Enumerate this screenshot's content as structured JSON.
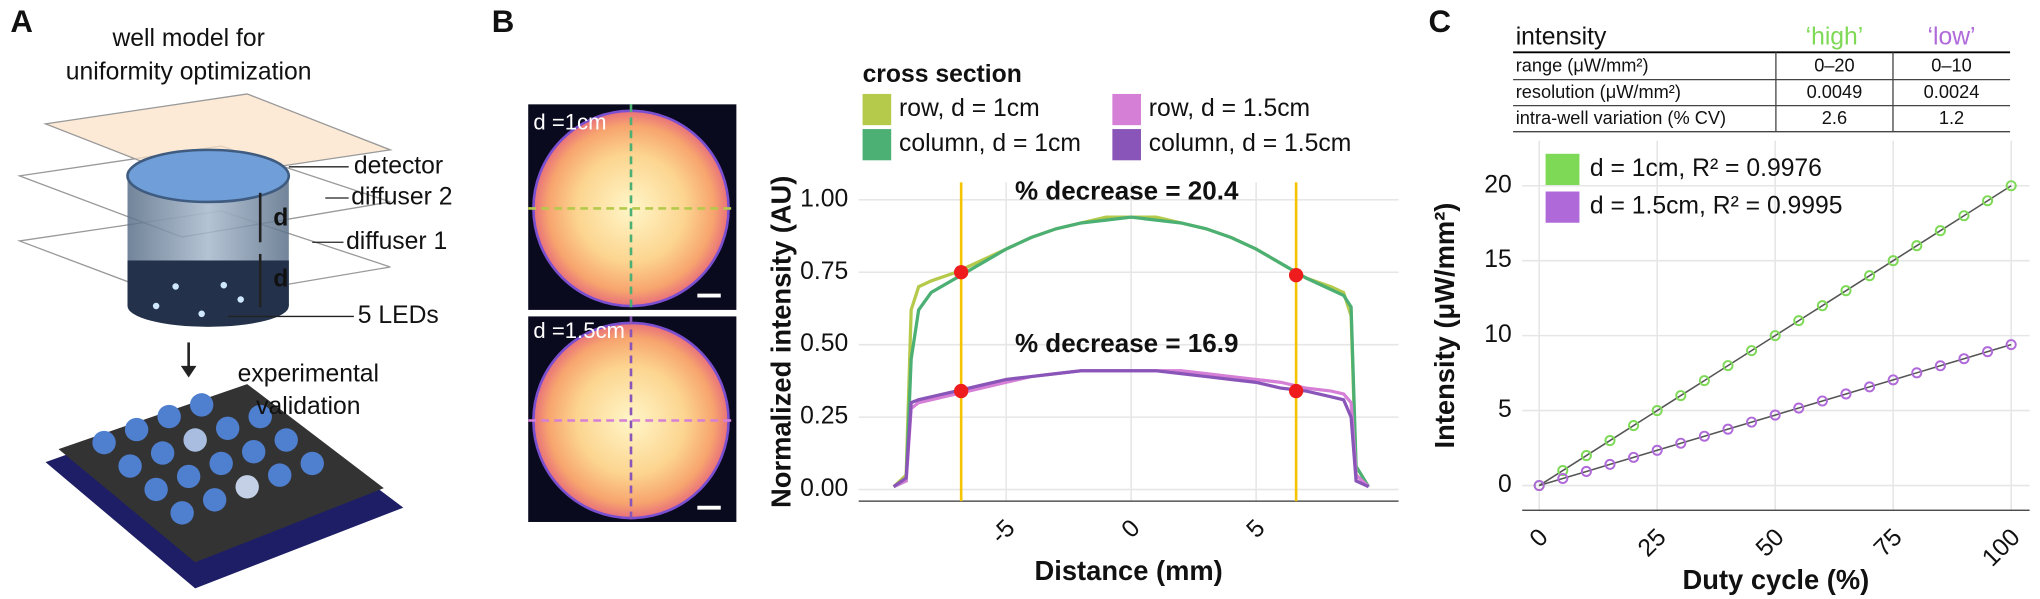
{
  "panels": {
    "a": "A",
    "b": "B",
    "c": "C"
  },
  "diagram": {
    "title": [
      "well model for",
      "uniformity optimization"
    ],
    "labels": {
      "detector": "detector",
      "diffuser2": "diffuser 2",
      "diffuser1": "diffuser 1",
      "d_top": "d",
      "d_bottom": "d",
      "leds": "5 LEDs"
    },
    "validation": [
      "experimental",
      "validation"
    ]
  },
  "images": {
    "top": "d =1cm",
    "bottom": "d =1.5cm"
  },
  "table": {
    "header": [
      "intensity",
      "‘high’",
      "‘low’"
    ],
    "rows": [
      [
        "range (μW/mm²)",
        "0–20",
        "0–10"
      ],
      [
        "resolution (μW/mm²)",
        "0.0049",
        "0.0024"
      ],
      [
        "intra-well variation (% CV)",
        "2.6",
        "1.2"
      ]
    ]
  },
  "chart_data": [
    {
      "type": "line",
      "legend_title": "cross section",
      "x_label": "Distance (mm)",
      "y_label": "Normalized intensity (AU)",
      "annotations": [
        "% decrease = 20.4",
        "% decrease = 16.9"
      ],
      "x": [
        -9.5,
        -9,
        -8.8,
        -8.5,
        -8,
        -7,
        -6,
        -5,
        -4,
        -3,
        -2,
        -1,
        0,
        1,
        2,
        3,
        4,
        5,
        6,
        7,
        8,
        8.5,
        8.8,
        9,
        9.5
      ],
      "series": [
        {
          "name": "row, d = 1cm",
          "color": "#b5c94a",
          "values": [
            0.01,
            0.05,
            0.62,
            0.7,
            0.72,
            0.75,
            0.79,
            0.83,
            0.87,
            0.9,
            0.92,
            0.94,
            0.94,
            0.94,
            0.92,
            0.9,
            0.87,
            0.83,
            0.78,
            0.73,
            0.7,
            0.68,
            0.6,
            0.05,
            0.01
          ]
        },
        {
          "name": "column, d = 1cm",
          "color": "#4caf73",
          "values": [
            0.01,
            0.03,
            0.45,
            0.62,
            0.68,
            0.73,
            0.78,
            0.83,
            0.87,
            0.9,
            0.92,
            0.93,
            0.94,
            0.93,
            0.92,
            0.9,
            0.87,
            0.83,
            0.78,
            0.73,
            0.69,
            0.67,
            0.63,
            0.08,
            0.01
          ]
        },
        {
          "name": "row, d = 1.5cm",
          "color": "#d67fd6",
          "values": [
            0.01,
            0.03,
            0.28,
            0.3,
            0.31,
            0.33,
            0.35,
            0.37,
            0.39,
            0.4,
            0.41,
            0.41,
            0.41,
            0.41,
            0.41,
            0.4,
            0.39,
            0.38,
            0.37,
            0.35,
            0.34,
            0.33,
            0.3,
            0.05,
            0.01
          ]
        },
        {
          "name": "column, d = 1.5cm",
          "color": "#8a55b8",
          "values": [
            0.01,
            0.04,
            0.3,
            0.31,
            0.32,
            0.34,
            0.36,
            0.38,
            0.39,
            0.4,
            0.41,
            0.41,
            0.41,
            0.41,
            0.4,
            0.39,
            0.38,
            0.37,
            0.35,
            0.34,
            0.32,
            0.31,
            0.25,
            0.03,
            0.01
          ]
        }
      ],
      "vlines": [
        -6.8,
        6.6
      ],
      "vline_color": "#f5c400",
      "highlights": {
        "x": [
          -6.8,
          -6.8,
          6.6,
          6.6
        ],
        "values": [
          0.75,
          0.34,
          0.74,
          0.34
        ],
        "color": "#ee1c1c"
      },
      "xlim": [
        -10.9,
        10.7
      ],
      "ylim": [
        -0.04,
        1.06
      ],
      "xticks": [
        -5,
        0,
        5
      ],
      "yticks": [
        {
          "value": 0,
          "label": "0.00"
        },
        {
          "value": 0.25,
          "label": "0.25"
        },
        {
          "value": 0.5,
          "label": "0.50"
        },
        {
          "value": 0.75,
          "label": "0.75"
        },
        {
          "value": 1,
          "label": "1.00"
        }
      ],
      "grid": true
    },
    {
      "type": "scatter",
      "x_label": "Duty cycle (%)",
      "y_label": "Intensity (μW/mm²)",
      "x": [
        0,
        5,
        10,
        15,
        20,
        25,
        30,
        35,
        40,
        45,
        50,
        55,
        60,
        65,
        70,
        75,
        80,
        85,
        90,
        95,
        100
      ],
      "series": [
        {
          "name": "d = 1cm, R² = 0.9976",
          "color": "#7ed957",
          "values": [
            0,
            1,
            2,
            3,
            4,
            5,
            6,
            7,
            8,
            9,
            10,
            11,
            12,
            13,
            14,
            15,
            16,
            17,
            18,
            19,
            20
          ]
        },
        {
          "name": "d = 1.5cm, R² = 0.9995",
          "color": "#b069d9",
          "values": [
            0,
            0.47,
            0.94,
            1.41,
            1.88,
            2.35,
            2.82,
            3.29,
            3.76,
            4.23,
            4.7,
            5.17,
            5.64,
            6.11,
            6.58,
            7.05,
            7.52,
            7.99,
            8.46,
            8.93,
            9.4
          ]
        }
      ],
      "fit_color": "#555555",
      "xlim": [
        -3.6,
        103.9
      ],
      "ylim": [
        -1.65,
        23
      ],
      "xticks": [
        0,
        25,
        50,
        75,
        100
      ],
      "yticks": [
        0,
        5,
        10,
        15,
        20
      ],
      "grid": true
    }
  ]
}
